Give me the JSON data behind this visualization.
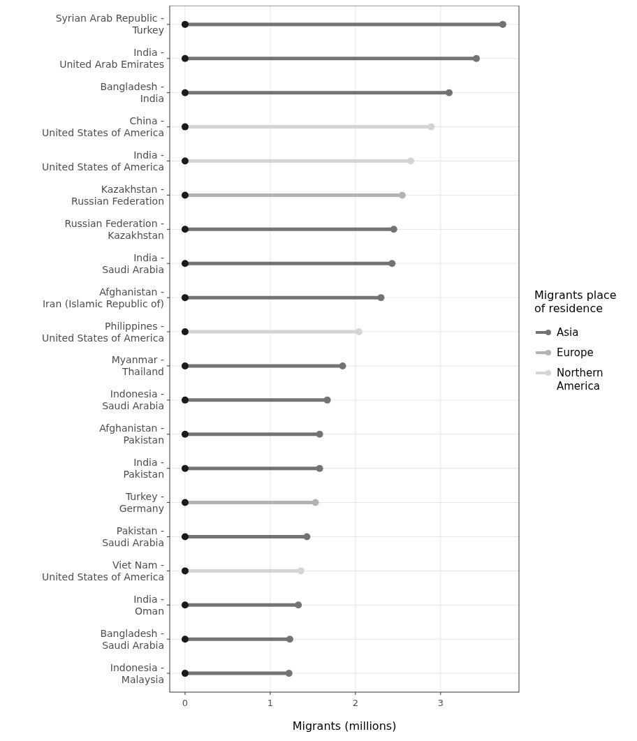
{
  "chart_data": {
    "type": "lollipop",
    "orientation": "horizontal",
    "xlabel": "Migrants (millions)",
    "legend_title": "Migrants place of residence",
    "legend": "right",
    "grid": true,
    "marker": "circle",
    "categories": [
      "Syrian Arab Republic -\nTurkey",
      "India -\nUnited Arab Emirates",
      "Bangladesh -\nIndia",
      "China -\nUnited States of America",
      "India -\nUnited States of America",
      "Kazakhstan -\nRussian Federation",
      "Russian Federation -\nKazakhstan",
      "India -\nSaudi Arabia",
      "Afghanistan -\nIran (Islamic Republic of)",
      "Philippines -\nUnited States of America",
      "Myanmar -\nThailand",
      "Indonesia -\nSaudi Arabia",
      "Afghanistan -\nPakistan",
      "India -\nPakistan",
      "Turkey -\nGermany",
      "Pakistan -\nSaudi Arabia",
      "Viet Nam -\nUnited States of America",
      "India -\nOman",
      "Bangladesh -\nSaudi Arabia",
      "Indonesia -\nMalaysia"
    ],
    "xlim": [
      -0.18,
      3.92
    ],
    "xticks": [
      0,
      1,
      2,
      3
    ],
    "series": [
      {
        "name": "Asia",
        "color": "#737373",
        "values": [
          3.73,
          3.42,
          3.1,
          null,
          null,
          null,
          2.45,
          2.43,
          2.3,
          null,
          1.85,
          1.67,
          1.58,
          1.58,
          null,
          1.43,
          null,
          1.33,
          1.23,
          1.22
        ]
      },
      {
        "name": "Europe",
        "color": "#b3b3b3",
        "values": [
          null,
          null,
          null,
          null,
          null,
          2.55,
          null,
          null,
          null,
          null,
          null,
          null,
          null,
          null,
          1.53,
          null,
          null,
          null,
          null,
          null
        ]
      },
      {
        "name": "Northern America",
        "color": "#d4d4d4",
        "values": [
          null,
          null,
          null,
          2.89,
          2.65,
          null,
          null,
          null,
          null,
          2.04,
          null,
          null,
          null,
          null,
          null,
          null,
          1.36,
          null,
          null,
          null
        ]
      },
      {
        "type": "scatter",
        "color": "#1a1a1a",
        "values": [
          0,
          0,
          0,
          0,
          0,
          0,
          0,
          0,
          0,
          0,
          0,
          0,
          0,
          0,
          0,
          0,
          0,
          0,
          0,
          0
        ]
      }
    ]
  }
}
